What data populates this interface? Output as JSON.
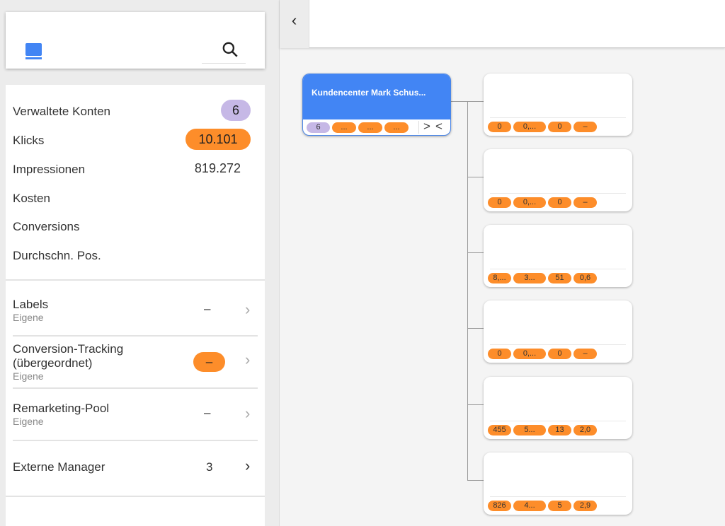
{
  "header": {
    "search_icon": "search-icon",
    "book_icon": "book-icon",
    "collapse_icon": "chevron-left-icon"
  },
  "stats": [
    {
      "label": "Verwaltete Konten",
      "value": "6",
      "style": "lavender"
    },
    {
      "label": "Klicks",
      "value": "10.101",
      "style": "orange"
    },
    {
      "label": "Impressionen",
      "value": "819.272",
      "style": "plain"
    },
    {
      "label": "Kosten",
      "value": ""
    },
    {
      "label": "Conversions",
      "value": ""
    },
    {
      "label": "Durchschn. Pos.",
      "value": ""
    }
  ],
  "sections": [
    {
      "title": "Labels",
      "sub": "Eigene",
      "value": "–"
    },
    {
      "title": "Conversion-Tracking",
      "title2": "(übergeordnet)",
      "sub": "Eigene",
      "value": "–"
    },
    {
      "title": "Remarketing-Pool",
      "sub": "Eigene",
      "value": "–"
    },
    {
      "title": "Externe Manager",
      "value": "3"
    }
  ],
  "root": {
    "title": "Kundencenter Mark Schus...",
    "pills": [
      "6",
      "...",
      "...",
      "..."
    ],
    "expand": ">",
    "collapse": "<"
  },
  "children": [
    {
      "pills": [
        "0",
        "0,...",
        "0",
        "–"
      ]
    },
    {
      "pills": [
        "0",
        "0,...",
        "0",
        "–"
      ]
    },
    {
      "pills": [
        "8,...",
        "3...",
        "51",
        "0,6"
      ]
    },
    {
      "pills": [
        "0",
        "0,...",
        "0",
        "–"
      ]
    },
    {
      "pills": [
        "455",
        "5...",
        "13",
        "2,0"
      ]
    },
    {
      "pills": [
        "826",
        "4...",
        "5",
        "2,9"
      ]
    }
  ],
  "colors": {
    "accent": "#4285f4",
    "orange": "#fd8d2a",
    "lavender": "#c6b8e6"
  }
}
